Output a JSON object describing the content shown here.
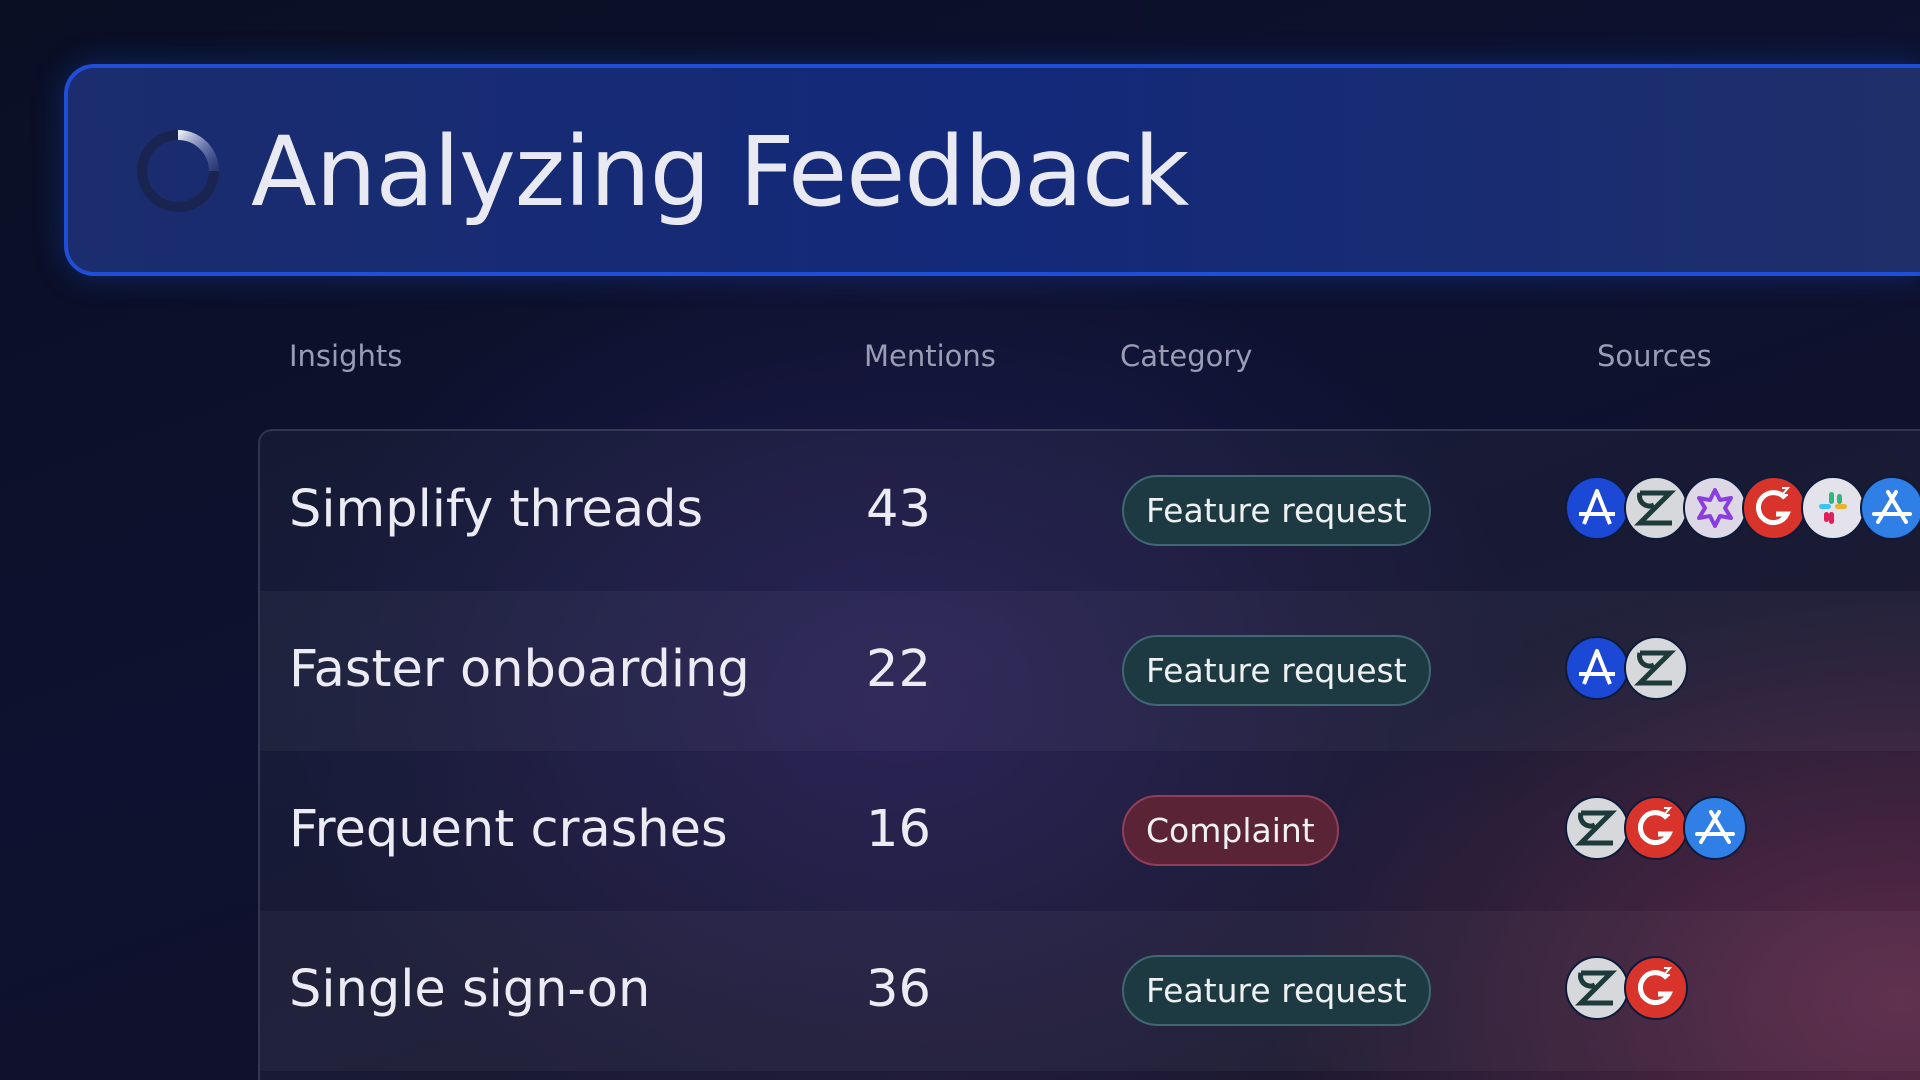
{
  "header": {
    "title": "Analyzing Feedback"
  },
  "table": {
    "columns": [
      "Insights",
      "Mentions",
      "Category",
      "Sources"
    ],
    "rows": [
      {
        "insight": "Simplify threads",
        "mentions": 43,
        "category": "Feature request"
      },
      {
        "insight": "Faster onboarding",
        "mentions": 22,
        "category": "Feature request"
      },
      {
        "insight": "Frequent crashes",
        "mentions": 16,
        "category": "Complaint"
      },
      {
        "insight": "Single sign-on",
        "mentions": 36,
        "category": "Feature request"
      }
    ]
  }
}
